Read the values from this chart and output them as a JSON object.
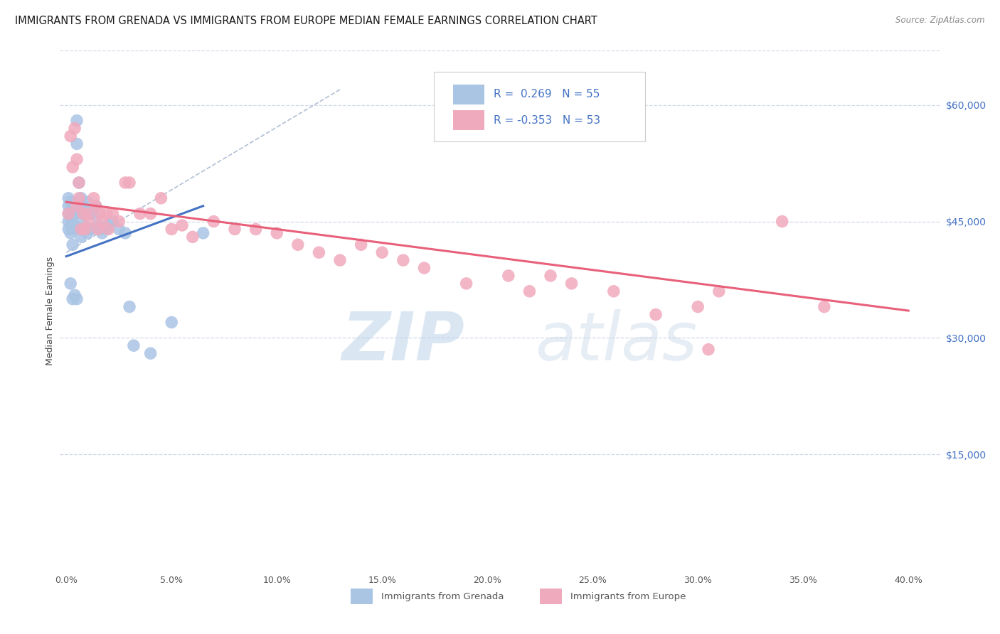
{
  "title": "IMMIGRANTS FROM GRENADA VS IMMIGRANTS FROM EUROPE MEDIAN FEMALE EARNINGS CORRELATION CHART",
  "source": "Source: ZipAtlas.com",
  "xlabel_ticks": [
    "0.0%",
    "5.0%",
    "10.0%",
    "15.0%",
    "20.0%",
    "25.0%",
    "30.0%",
    "35.0%",
    "40.0%"
  ],
  "xlabel_vals": [
    0.0,
    0.05,
    0.1,
    0.15,
    0.2,
    0.25,
    0.3,
    0.35,
    0.4
  ],
  "ylabel": "Median Female Earnings",
  "ylabel_ticks": [
    "$60,000",
    "$45,000",
    "$30,000",
    "$15,000"
  ],
  "ylabel_vals": [
    60000,
    45000,
    30000,
    15000
  ],
  "ymin": 0,
  "ymax": 67000,
  "xmin": -0.003,
  "xmax": 0.415,
  "R_blue": 0.269,
  "N_blue": 55,
  "R_pink": -0.353,
  "N_pink": 53,
  "blue_color": "#aac4e4",
  "pink_color": "#f0aabe",
  "blue_line_color": "#4472c4",
  "pink_line_color": "#e8607a",
  "dashed_line_color": "#a8b8d0",
  "watermark_zip": "ZIP",
  "watermark_atlas": "atlas",
  "legend_label_blue": "Immigrants from Grenada",
  "legend_label_pink": "Immigrants from Europe",
  "blue_x": [
    0.001,
    0.001,
    0.001,
    0.001,
    0.001,
    0.002,
    0.002,
    0.002,
    0.002,
    0.002,
    0.002,
    0.003,
    0.003,
    0.003,
    0.003,
    0.003,
    0.004,
    0.004,
    0.004,
    0.005,
    0.005,
    0.005,
    0.005,
    0.006,
    0.006,
    0.006,
    0.007,
    0.007,
    0.007,
    0.008,
    0.008,
    0.009,
    0.009,
    0.01,
    0.01,
    0.01,
    0.011,
    0.011,
    0.012,
    0.012,
    0.013,
    0.014,
    0.015,
    0.016,
    0.017,
    0.019,
    0.02,
    0.022,
    0.025,
    0.028,
    0.03,
    0.032,
    0.04,
    0.05,
    0.065
  ],
  "blue_y": [
    48000,
    47000,
    46000,
    45000,
    44000,
    47500,
    46500,
    45500,
    44500,
    43500,
    37000,
    46000,
    45000,
    44000,
    42000,
    35000,
    46500,
    44500,
    35500,
    58000,
    55000,
    47000,
    35000,
    50000,
    46000,
    44000,
    48000,
    46000,
    43000,
    47000,
    44500,
    46000,
    44000,
    47500,
    46000,
    43500,
    46000,
    44000,
    46500,
    44000,
    46000,
    47000,
    44500,
    44000,
    43500,
    44000,
    44500,
    45000,
    44000,
    43500,
    34000,
    29000,
    28000,
    32000,
    43500
  ],
  "pink_x": [
    0.001,
    0.002,
    0.003,
    0.004,
    0.005,
    0.005,
    0.006,
    0.006,
    0.007,
    0.008,
    0.009,
    0.01,
    0.011,
    0.013,
    0.014,
    0.015,
    0.016,
    0.017,
    0.019,
    0.02,
    0.022,
    0.025,
    0.028,
    0.03,
    0.035,
    0.04,
    0.045,
    0.05,
    0.055,
    0.06,
    0.07,
    0.08,
    0.09,
    0.1,
    0.11,
    0.12,
    0.13,
    0.14,
    0.15,
    0.16,
    0.17,
    0.19,
    0.21,
    0.22,
    0.23,
    0.24,
    0.26,
    0.28,
    0.3,
    0.305,
    0.31,
    0.34,
    0.36
  ],
  "pink_y": [
    46000,
    56000,
    52000,
    57000,
    53000,
    47000,
    50000,
    48000,
    44000,
    46000,
    44000,
    46000,
    45000,
    48000,
    47000,
    44000,
    46000,
    45000,
    46000,
    44000,
    46000,
    45000,
    50000,
    50000,
    46000,
    46000,
    48000,
    44000,
    44500,
    43000,
    45000,
    44000,
    44000,
    43500,
    42000,
    41000,
    40000,
    42000,
    41000,
    40000,
    39000,
    37000,
    38000,
    36000,
    38000,
    37000,
    36000,
    33000,
    34000,
    28500,
    36000,
    45000,
    34000
  ],
  "background_color": "#ffffff",
  "grid_color": "#d0d8e8"
}
